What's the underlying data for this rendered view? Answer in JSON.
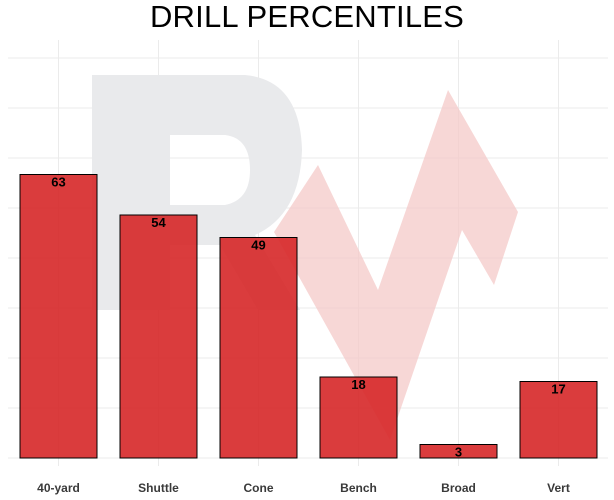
{
  "chart_data": {
    "type": "bar",
    "title": "DRILL PERCENTILES",
    "categories": [
      "40-yard",
      "Shuttle",
      "Cone",
      "Bench",
      "Broad",
      "Vert"
    ],
    "values": [
      63,
      54,
      49,
      18,
      3,
      17
    ],
    "ylim": [
      0,
      100
    ],
    "grid": true,
    "bar_color": "#d62728",
    "bar_outline": "#000000",
    "watermark_color": "#e6e6e6",
    "watermark_accent": "#f4c7c7"
  }
}
